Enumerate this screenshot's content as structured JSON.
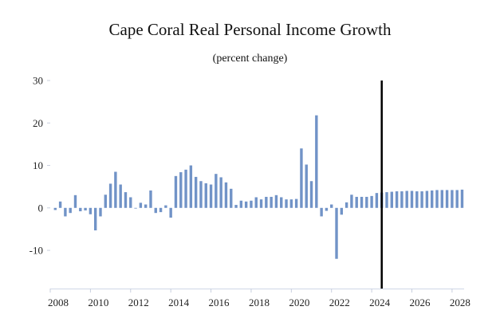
{
  "chart_data": {
    "type": "bar",
    "title": "Cape Coral Real Personal Income Growth",
    "subtitle": "(percent change)",
    "xlabel": "",
    "ylabel": "",
    "ylim": [
      -19,
      30
    ],
    "xlim": [
      2008.0,
      2028.6
    ],
    "yticks": [
      -10,
      0,
      10,
      20,
      30
    ],
    "ytick_labels": [
      "-10",
      "0",
      "10",
      "20",
      "30"
    ],
    "xticks": [
      2008,
      2010,
      2012,
      2014,
      2016,
      2018,
      2020,
      2022,
      2024,
      2026,
      2028
    ],
    "xtick_labels": [
      "2008",
      "2010",
      "2012",
      "2014",
      "2016",
      "2018",
      "2020",
      "2022",
      "2024",
      "2026",
      "2028"
    ],
    "forecast_line_x": 2024.5,
    "bar_color": "#7193c7",
    "series": [
      {
        "name": "Real Personal Income Growth",
        "x": [
          2008.25,
          2008.5,
          2008.75,
          2009.0,
          2009.25,
          2009.5,
          2009.75,
          2010.0,
          2010.25,
          2010.5,
          2010.75,
          2011.0,
          2011.25,
          2011.5,
          2011.75,
          2012.0,
          2012.25,
          2012.5,
          2012.75,
          2013.0,
          2013.25,
          2013.5,
          2013.75,
          2014.0,
          2014.25,
          2014.5,
          2014.75,
          2015.0,
          2015.25,
          2015.5,
          2015.75,
          2016.0,
          2016.25,
          2016.5,
          2016.75,
          2017.0,
          2017.25,
          2017.5,
          2017.75,
          2018.0,
          2018.25,
          2018.5,
          2018.75,
          2019.0,
          2019.25,
          2019.5,
          2019.75,
          2020.0,
          2020.25,
          2020.5,
          2020.75,
          2021.0,
          2021.25,
          2021.5,
          2021.75,
          2022.0,
          2022.25,
          2022.5,
          2022.75,
          2023.0,
          2023.25,
          2023.5,
          2023.75,
          2024.0,
          2024.25,
          2024.5,
          2024.75,
          2025.0,
          2025.25,
          2025.5,
          2025.75,
          2026.0,
          2026.25,
          2026.5,
          2026.75,
          2027.0,
          2027.25,
          2027.5,
          2027.75,
          2028.0,
          2028.25,
          2028.5
        ],
        "values": [
          -0.5,
          1.5,
          -2.0,
          -1.2,
          3.0,
          -0.8,
          -0.6,
          -1.5,
          -5.3,
          -2.0,
          3.1,
          5.7,
          8.5,
          5.5,
          3.7,
          2.5,
          0.0,
          1.2,
          0.8,
          4.1,
          -1.2,
          -1.0,
          0.6,
          -2.3,
          7.5,
          8.4,
          9.0,
          10.0,
          7.3,
          6.3,
          5.8,
          5.5,
          8.0,
          7.2,
          6.0,
          4.5,
          0.7,
          1.7,
          1.5,
          1.7,
          2.5,
          2.0,
          2.6,
          2.6,
          3.0,
          2.5,
          2.0,
          2.0,
          2.1,
          14.0,
          10.2,
          6.3,
          21.8,
          -2.0,
          -0.7,
          0.8,
          -12.0,
          -1.6,
          1.3,
          3.1,
          2.6,
          2.6,
          2.6,
          2.8,
          3.5,
          3.6,
          3.7,
          3.8,
          3.9,
          3.9,
          4.0,
          4.0,
          3.9,
          3.9,
          4.0,
          4.1,
          4.2,
          4.2,
          4.2,
          4.2,
          4.2,
          4.3
        ]
      }
    ]
  }
}
